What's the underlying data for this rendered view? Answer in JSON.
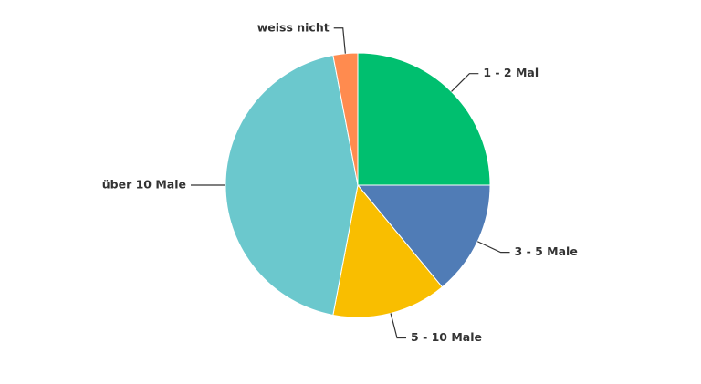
{
  "chart_data": {
    "type": "pie",
    "categories": [
      "1 - 2 Mal",
      "3 - 5 Male",
      "5 - 10 Male",
      "über 10 Male",
      "weiss nicht"
    ],
    "values": [
      25,
      14,
      14,
      44,
      3
    ],
    "colors": [
      "#00bf6f",
      "#507cb6",
      "#f9be00",
      "#6bc8cd",
      "#ff8b4f"
    ]
  }
}
